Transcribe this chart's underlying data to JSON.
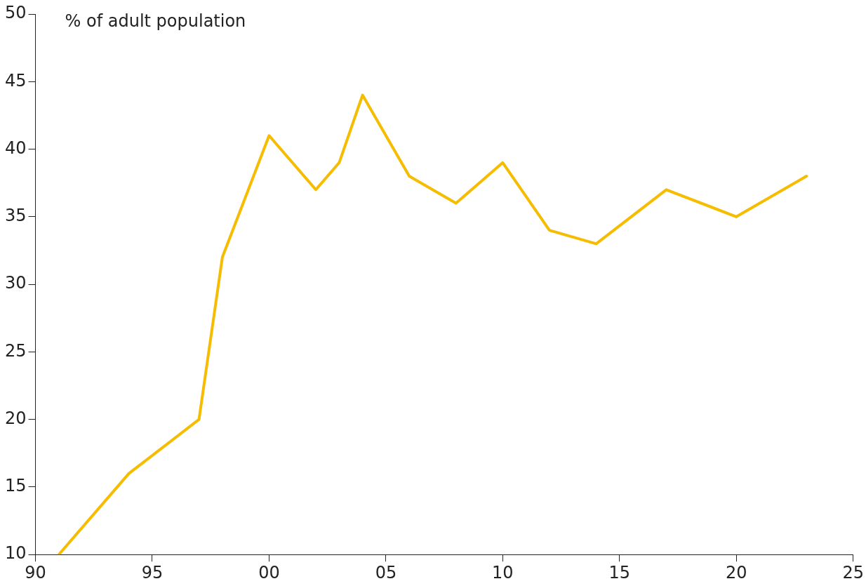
{
  "chart_data": {
    "type": "line",
    "ylabel": "% of adult population",
    "x": [
      1991,
      1994,
      1997,
      1998,
      2000,
      2002,
      2003,
      2004,
      2006,
      2008,
      2010,
      2012,
      2014,
      2017,
      2020,
      2023
    ],
    "series": [
      {
        "color": "#f5bc00",
        "values": [
          10,
          16,
          20,
          32,
          41,
          37,
          39,
          44,
          38,
          36,
          39,
          34,
          33,
          37,
          35,
          38
        ]
      }
    ],
    "xlim": [
      1990,
      2025
    ],
    "xticks": [
      {
        "value": 1990,
        "label": "90"
      },
      {
        "value": 1995,
        "label": "95"
      },
      {
        "value": 2000,
        "label": "00"
      },
      {
        "value": 2005,
        "label": "05"
      },
      {
        "value": 2010,
        "label": "10"
      },
      {
        "value": 2015,
        "label": "15"
      },
      {
        "value": 2020,
        "label": "20"
      },
      {
        "value": 2025,
        "label": "25"
      }
    ],
    "ylim": [
      10,
      50
    ],
    "yticks": [
      10,
      15,
      20,
      25,
      30,
      35,
      40,
      45,
      50
    ],
    "grid": false,
    "legend": false,
    "marker": "none",
    "line_style": "solid"
  }
}
